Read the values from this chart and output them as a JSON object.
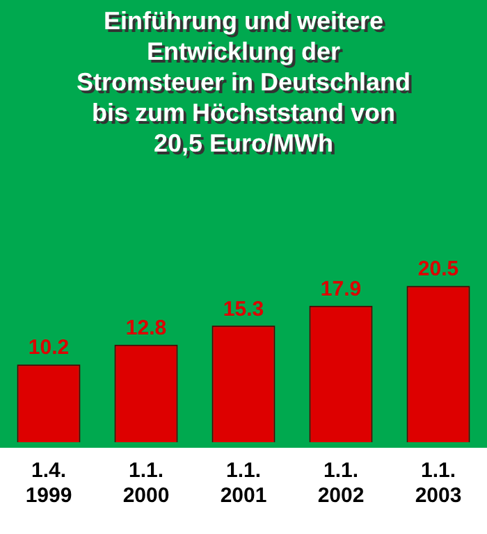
{
  "chart_data": {
    "type": "bar",
    "title": "Einführung und weitere\nEntwicklung der\nStromsteuer in Deutschland\nbis zum Höchststand von\n20,5 Euro/MWh",
    "categories": [
      "1.4.\n1999",
      "1.1.\n2000",
      "1.1.\n2001",
      "1.1.\n2002",
      "1.1.\n2003"
    ],
    "values": [
      10.2,
      12.8,
      15.3,
      17.9,
      20.5
    ],
    "color": "#dd0000",
    "ylim": [
      0,
      58
    ],
    "data_labels": true
  }
}
